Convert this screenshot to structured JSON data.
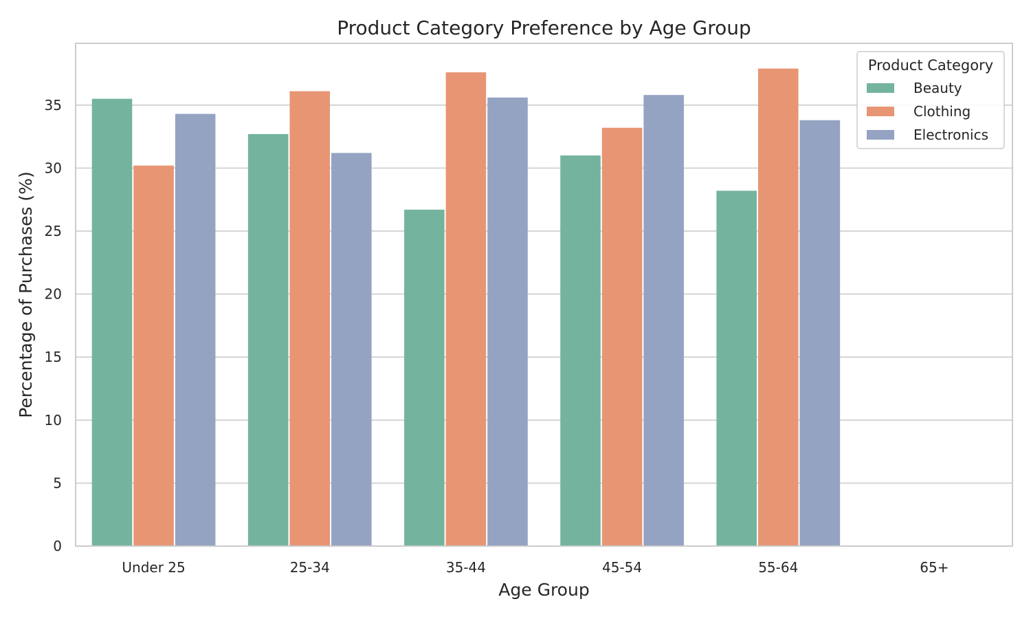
{
  "chart_data": {
    "type": "bar",
    "title": "Product Category Preference by Age Group",
    "xlabel": "Age Group",
    "ylabel": "Percentage of Purchases (%)",
    "categories": [
      "Under 25",
      "25-34",
      "35-44",
      "45-54",
      "55-64",
      "65+"
    ],
    "series": [
      {
        "name": "Beauty",
        "color": "#74b49e",
        "values": [
          35.5,
          32.7,
          26.7,
          31.0,
          28.2,
          0
        ]
      },
      {
        "name": "Clothing",
        "color": "#e89574",
        "values": [
          30.2,
          36.1,
          37.6,
          33.2,
          37.9,
          0
        ]
      },
      {
        "name": "Electronics",
        "color": "#95a3c2",
        "values": [
          34.3,
          31.2,
          35.6,
          35.8,
          33.8,
          0
        ]
      }
    ],
    "ylim": [
      0,
      39.9
    ],
    "yticks": [
      0,
      5,
      10,
      15,
      20,
      25,
      30,
      35
    ],
    "grid": true,
    "legend": {
      "title": "Product Category",
      "position": "top-right"
    }
  }
}
